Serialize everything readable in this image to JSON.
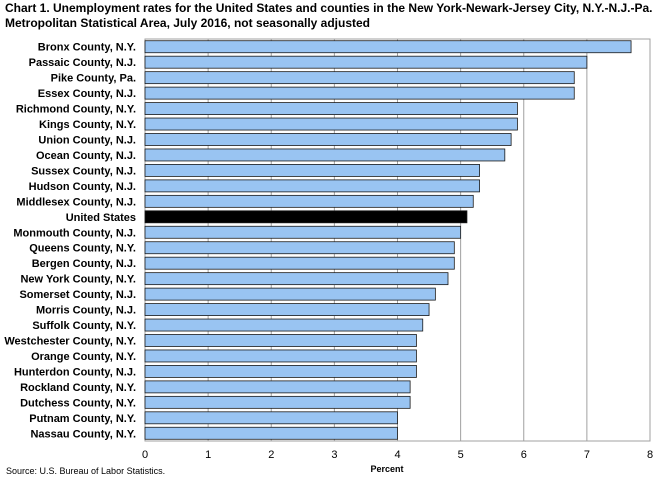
{
  "chart_title": {
    "line1": "Chart 1. Unemployment rates for the United States and counties in the New York-Newark-Jersey City, N.Y.-N.J.-Pa.",
    "line2": "Metropolitan Statistical Area, July 2016, not seasonally adjusted"
  },
  "source_note": "Source: U.S. Bureau of Labor Statistics.",
  "colors": {
    "bar": "#99c4f2",
    "highlight_bar": "#000000",
    "bar_border": "#1a1a1a",
    "grid": "#a0a0a0"
  },
  "chart_data": {
    "type": "bar",
    "orientation": "horizontal",
    "xlabel": "Percent",
    "xlim": [
      0,
      8
    ],
    "xticks": [
      0,
      1,
      2,
      3,
      4,
      5,
      6,
      7,
      8
    ],
    "grid": true,
    "highlight": "United States",
    "categories": [
      "Bronx County, N.Y.",
      "Passaic County, N.J.",
      "Pike County, Pa.",
      "Essex County, N.J.",
      "Richmond County, N.Y.",
      "Kings County, N.Y.",
      "Union County, N.J.",
      "Ocean County, N.J.",
      "Sussex County, N.J.",
      "Hudson County, N.J.",
      "Middlesex County, N.J.",
      "United States",
      "Monmouth County, N.J.",
      "Queens County, N.Y.",
      "Bergen County, N.J.",
      "New York County, N.Y.",
      "Somerset County, N.J.",
      "Morris County, N.J.",
      "Suffolk County, N.Y.",
      "Westchester County, N.Y.",
      "Orange County, N.Y.",
      "Hunterdon County, N.J.",
      "Rockland County, N.Y.",
      "Dutchess County, N.Y.",
      "Putnam County, N.Y.",
      "Nassau County, N.Y."
    ],
    "values": [
      7.7,
      7.0,
      6.8,
      6.8,
      5.9,
      5.9,
      5.8,
      5.7,
      5.3,
      5.3,
      5.2,
      5.1,
      5.0,
      4.9,
      4.9,
      4.8,
      4.6,
      4.5,
      4.4,
      4.3,
      4.3,
      4.3,
      4.2,
      4.2,
      4.0,
      4.0
    ]
  }
}
